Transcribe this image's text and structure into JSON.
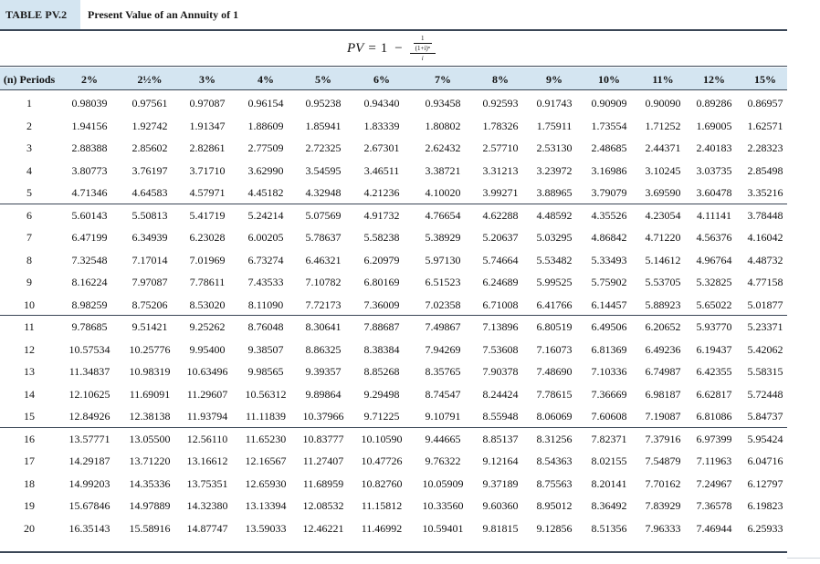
{
  "title": {
    "tag": "TABLE PV.2",
    "text": "Present Value of an Annuity of 1"
  },
  "formula": {
    "lhs": "PV",
    "eq": "=",
    "one": "1",
    "minus": "−",
    "num_top": "1",
    "num_bottom": "(1+i)ⁿ",
    "denominator": "i"
  },
  "table": {
    "header_periods": "(n) Periods",
    "rates": [
      "2%",
      "2½%",
      "3%",
      "4%",
      "5%",
      "6%",
      "7%",
      "8%",
      "9%",
      "10%",
      "11%",
      "12%",
      "15%"
    ],
    "rows": [
      {
        "period": "1",
        "values": [
          "0.98039",
          "0.97561",
          "0.97087",
          "0.96154",
          "0.95238",
          "0.94340",
          "0.93458",
          "0.92593",
          "0.91743",
          "0.90909",
          "0.90090",
          "0.89286",
          "0.86957"
        ]
      },
      {
        "period": "2",
        "values": [
          "1.94156",
          "1.92742",
          "1.91347",
          "1.88609",
          "1.85941",
          "1.83339",
          "1.80802",
          "1.78326",
          "1.75911",
          "1.73554",
          "1.71252",
          "1.69005",
          "1.62571"
        ]
      },
      {
        "period": "3",
        "values": [
          "2.88388",
          "2.85602",
          "2.82861",
          "2.77509",
          "2.72325",
          "2.67301",
          "2.62432",
          "2.57710",
          "2.53130",
          "2.48685",
          "2.44371",
          "2.40183",
          "2.28323"
        ]
      },
      {
        "period": "4",
        "values": [
          "3.80773",
          "3.76197",
          "3.71710",
          "3.62990",
          "3.54595",
          "3.46511",
          "3.38721",
          "3.31213",
          "3.23972",
          "3.16986",
          "3.10245",
          "3.03735",
          "2.85498"
        ]
      },
      {
        "period": "5",
        "values": [
          "4.71346",
          "4.64583",
          "4.57971",
          "4.45182",
          "4.32948",
          "4.21236",
          "4.10020",
          "3.99271",
          "3.88965",
          "3.79079",
          "3.69590",
          "3.60478",
          "3.35216"
        ]
      },
      {
        "period": "6",
        "values": [
          "5.60143",
          "5.50813",
          "5.41719",
          "5.24214",
          "5.07569",
          "4.91732",
          "4.76654",
          "4.62288",
          "4.48592",
          "4.35526",
          "4.23054",
          "4.11141",
          "3.78448"
        ]
      },
      {
        "period": "7",
        "values": [
          "6.47199",
          "6.34939",
          "6.23028",
          "6.00205",
          "5.78637",
          "5.58238",
          "5.38929",
          "5.20637",
          "5.03295",
          "4.86842",
          "4.71220",
          "4.56376",
          "4.16042"
        ]
      },
      {
        "period": "8",
        "values": [
          "7.32548",
          "7.17014",
          "7.01969",
          "6.73274",
          "6.46321",
          "6.20979",
          "5.97130",
          "5.74664",
          "5.53482",
          "5.33493",
          "5.14612",
          "4.96764",
          "4.48732"
        ]
      },
      {
        "period": "9",
        "values": [
          "8.16224",
          "7.97087",
          "7.78611",
          "7.43533",
          "7.10782",
          "6.80169",
          "6.51523",
          "6.24689",
          "5.99525",
          "5.75902",
          "5.53705",
          "5.32825",
          "4.77158"
        ]
      },
      {
        "period": "10",
        "values": [
          "8.98259",
          "8.75206",
          "8.53020",
          "8.11090",
          "7.72173",
          "7.36009",
          "7.02358",
          "6.71008",
          "6.41766",
          "6.14457",
          "5.88923",
          "5.65022",
          "5.01877"
        ]
      },
      {
        "period": "11",
        "values": [
          "9.78685",
          "9.51421",
          "9.25262",
          "8.76048",
          "8.30641",
          "7.88687",
          "7.49867",
          "7.13896",
          "6.80519",
          "6.49506",
          "6.20652",
          "5.93770",
          "5.23371"
        ]
      },
      {
        "period": "12",
        "values": [
          "10.57534",
          "10.25776",
          "9.95400",
          "9.38507",
          "8.86325",
          "8.38384",
          "7.94269",
          "7.53608",
          "7.16073",
          "6.81369",
          "6.49236",
          "6.19437",
          "5.42062"
        ]
      },
      {
        "period": "13",
        "values": [
          "11.34837",
          "10.98319",
          "10.63496",
          "9.98565",
          "9.39357",
          "8.85268",
          "8.35765",
          "7.90378",
          "7.48690",
          "7.10336",
          "6.74987",
          "6.42355",
          "5.58315"
        ]
      },
      {
        "period": "14",
        "values": [
          "12.10625",
          "11.69091",
          "11.29607",
          "10.56312",
          "9.89864",
          "9.29498",
          "8.74547",
          "8.24424",
          "7.78615",
          "7.36669",
          "6.98187",
          "6.62817",
          "5.72448"
        ]
      },
      {
        "period": "15",
        "values": [
          "12.84926",
          "12.38138",
          "11.93794",
          "11.11839",
          "10.37966",
          "9.71225",
          "9.10791",
          "8.55948",
          "8.06069",
          "7.60608",
          "7.19087",
          "6.81086",
          "5.84737"
        ]
      },
      {
        "period": "16",
        "values": [
          "13.57771",
          "13.05500",
          "12.56110",
          "11.65230",
          "10.83777",
          "10.10590",
          "9.44665",
          "8.85137",
          "8.31256",
          "7.82371",
          "7.37916",
          "6.97399",
          "5.95424"
        ]
      },
      {
        "period": "17",
        "values": [
          "14.29187",
          "13.71220",
          "13.16612",
          "12.16567",
          "11.27407",
          "10.47726",
          "9.76322",
          "9.12164",
          "8.54363",
          "8.02155",
          "7.54879",
          "7.11963",
          "6.04716"
        ]
      },
      {
        "period": "18",
        "values": [
          "14.99203",
          "14.35336",
          "13.75351",
          "12.65930",
          "11.68959",
          "10.82760",
          "10.05909",
          "9.37189",
          "8.75563",
          "8.20141",
          "7.70162",
          "7.24967",
          "6.12797"
        ]
      },
      {
        "period": "19",
        "values": [
          "15.67846",
          "14.97889",
          "14.32380",
          "13.13394",
          "12.08532",
          "11.15812",
          "10.33560",
          "9.60360",
          "8.95012",
          "8.36492",
          "7.83929",
          "7.36578",
          "6.19823"
        ]
      },
      {
        "period": "20",
        "values": [
          "16.35143",
          "15.58916",
          "14.87747",
          "13.59033",
          "12.46221",
          "11.46992",
          "10.59401",
          "9.81815",
          "9.12856",
          "8.51356",
          "7.96333",
          "7.46944",
          "6.25933"
        ]
      }
    ]
  },
  "colors": {
    "header_fill": "#d4e5f1",
    "rule": "#3a4656"
  }
}
